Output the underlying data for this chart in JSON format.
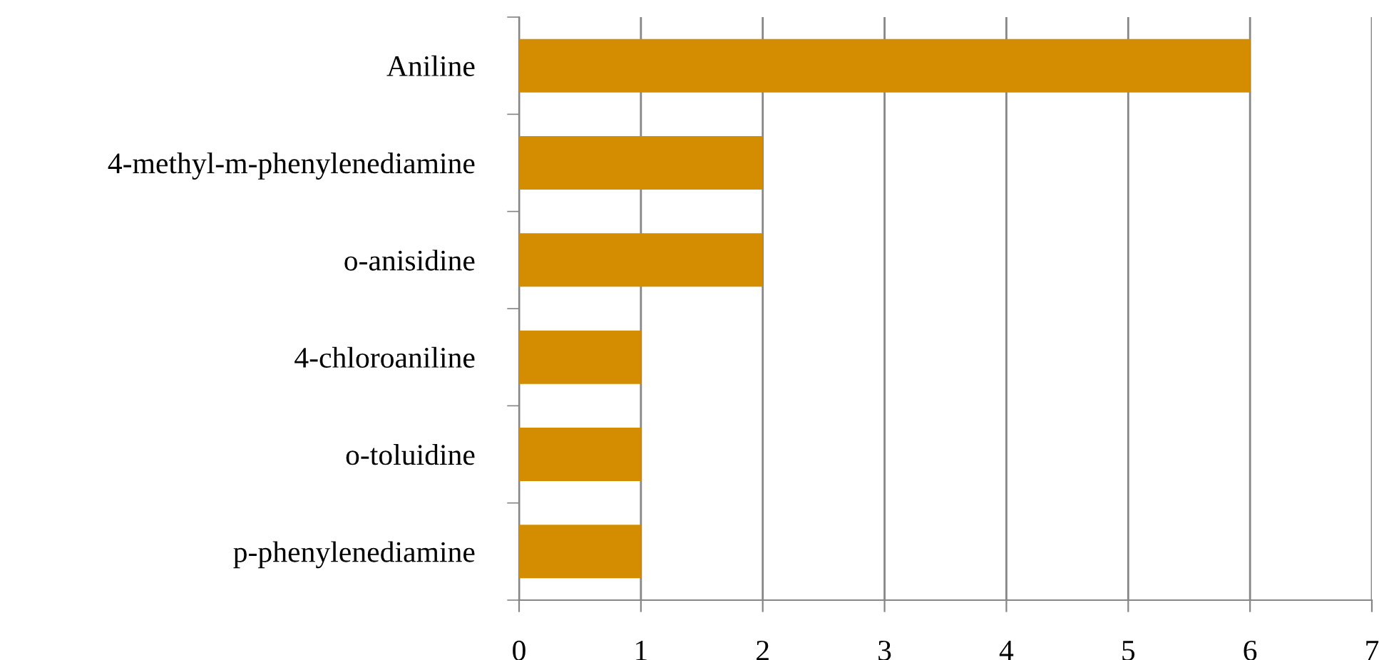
{
  "chart_data": {
    "type": "bar",
    "orientation": "horizontal",
    "categories": [
      "Aniline",
      "4-methyl-m-phenylenediamine",
      "o-anisidine",
      "4-chloroaniline",
      "o-toluidine",
      "p-phenylenediamine"
    ],
    "values": [
      6,
      2,
      2,
      1,
      1,
      1
    ],
    "color": "#d48c00",
    "xlim": [
      0,
      7
    ],
    "xticks": [
      0,
      1,
      2,
      3,
      4,
      5,
      6,
      7
    ],
    "grid": "x",
    "legend": false
  }
}
